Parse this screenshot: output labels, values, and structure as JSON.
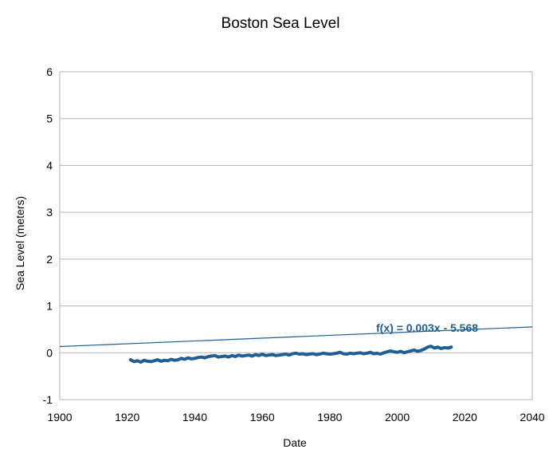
{
  "chart_data": {
    "type": "line",
    "title": "Boston Sea Level",
    "xlabel": "Date",
    "ylabel": "Sea Level (meters)",
    "xlim": [
      1900,
      2040
    ],
    "ylim": [
      -1,
      6
    ],
    "x_ticks": [
      "1900",
      "1920",
      "1940",
      "1960",
      "1980",
      "2000",
      "2020",
      "2040"
    ],
    "y_ticks": [
      "-1",
      "0",
      "1",
      "2",
      "3",
      "4",
      "5",
      "6"
    ],
    "grid": true,
    "series_color": "#1f5f96",
    "series": [
      {
        "x": [
          1921,
          1922,
          1923,
          1924,
          1925,
          1926,
          1927,
          1928,
          1929,
          1930,
          1931,
          1932,
          1933,
          1934,
          1935,
          1936,
          1937,
          1938,
          1939,
          1940,
          1941,
          1942,
          1943,
          1944,
          1945,
          1946,
          1947,
          1948,
          1949,
          1950,
          1951,
          1952,
          1953,
          1954,
          1955,
          1956,
          1957,
          1958,
          1959,
          1960,
          1961,
          1962,
          1963,
          1964,
          1965,
          1966,
          1967,
          1968,
          1969,
          1970,
          1971,
          1972,
          1973,
          1974,
          1975,
          1976,
          1977,
          1978,
          1979,
          1980,
          1981,
          1982,
          1983,
          1984,
          1985,
          1986,
          1987,
          1988,
          1989,
          1990,
          1991,
          1992,
          1993,
          1994,
          1995,
          1996,
          1997,
          1998,
          1999,
          2000,
          2001,
          2002,
          2003,
          2004,
          2005,
          2006,
          2007,
          2008,
          2009,
          2010,
          2011,
          2012,
          2013,
          2014,
          2015,
          2016
        ],
        "y": [
          -0.15,
          -0.19,
          -0.17,
          -0.2,
          -0.16,
          -0.18,
          -0.19,
          -0.17,
          -0.15,
          -0.18,
          -0.16,
          -0.17,
          -0.14,
          -0.16,
          -0.15,
          -0.12,
          -0.14,
          -0.11,
          -0.13,
          -0.12,
          -0.1,
          -0.09,
          -0.11,
          -0.08,
          -0.07,
          -0.06,
          -0.09,
          -0.08,
          -0.07,
          -0.09,
          -0.06,
          -0.08,
          -0.05,
          -0.07,
          -0.06,
          -0.05,
          -0.07,
          -0.04,
          -0.06,
          -0.03,
          -0.06,
          -0.05,
          -0.04,
          -0.06,
          -0.05,
          -0.04,
          -0.03,
          -0.05,
          -0.02,
          -0.01,
          -0.03,
          -0.02,
          -0.04,
          -0.03,
          -0.02,
          -0.04,
          -0.03,
          -0.01,
          -0.02,
          -0.03,
          -0.02,
          -0.01,
          0.01,
          -0.02,
          -0.03,
          -0.01,
          -0.02,
          -0.01,
          0.0,
          -0.02,
          -0.01,
          0.01,
          -0.02,
          -0.01,
          -0.03,
          0.0,
          0.02,
          0.04,
          0.02,
          0.01,
          0.03,
          0.0,
          0.02,
          0.04,
          0.06,
          0.03,
          0.05,
          0.08,
          0.12,
          0.14,
          0.1,
          0.12,
          0.09,
          0.11,
          0.1,
          0.12
        ]
      }
    ],
    "trendline": {
      "equation": "f(x) = 0.003x - 5.568",
      "slope": 0.003,
      "intercept": -5.568,
      "x_range": [
        1900,
        2040
      ]
    }
  }
}
